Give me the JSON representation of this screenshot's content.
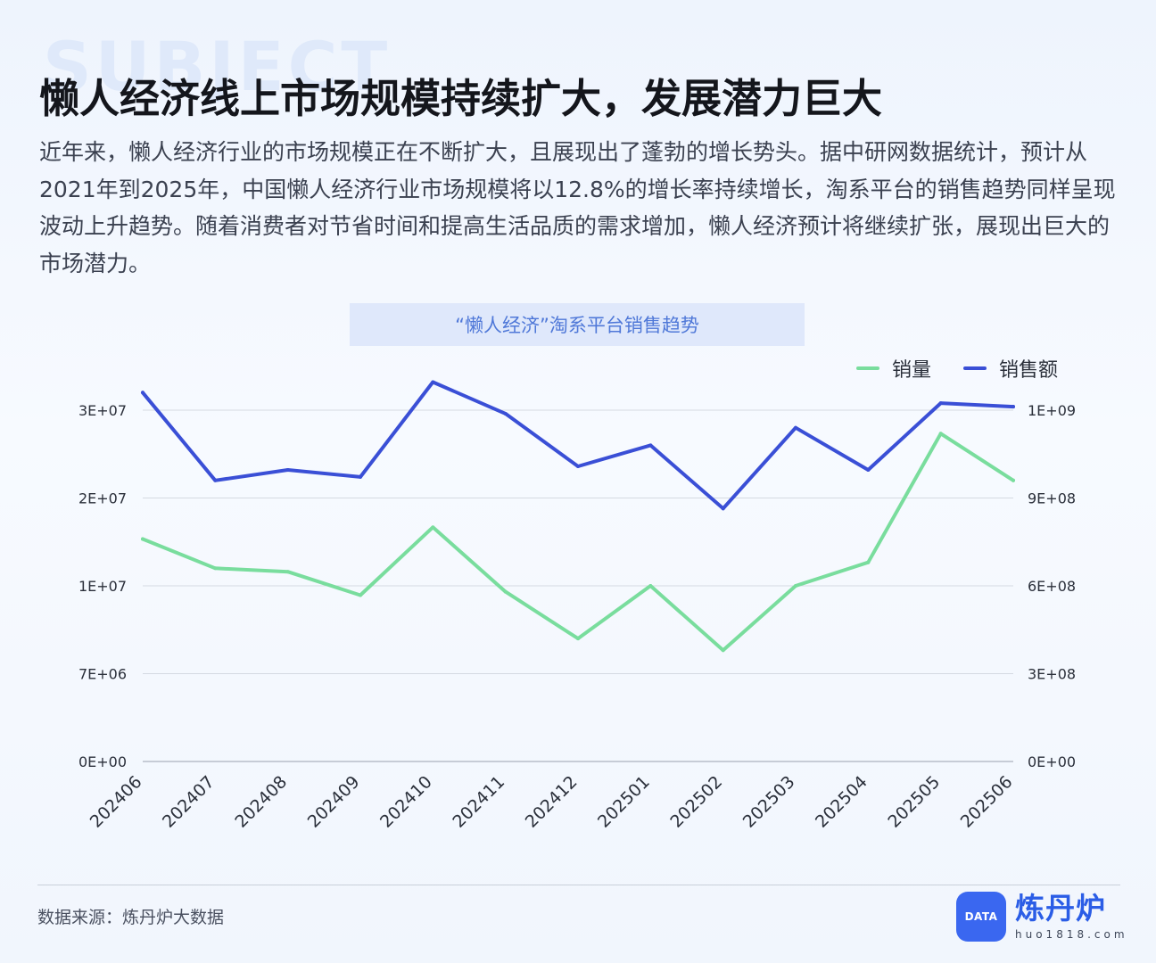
{
  "header": {
    "background_word": "SUBJECT",
    "title": "懒人经济线上市场规模持续扩大，发展潜力巨大",
    "intro": "近年来，懒人经济行业的市场规模正在不断扩大，且展现出了蓬勃的增长势头。据中研网数据统计，预计从2021年到2025年，中国懒人经济行业市场规模将以12.8%的增长率持续增长，淘系平台的销售趋势同样呈现波动上升趋势。随着消费者对节省时间和提高生活品质的需求增加，懒人经济预计将继续扩张，展现出巨大的市场潜力。"
  },
  "chart_data": {
    "type": "line",
    "title": "“懒人经济”淘系平台销售趋势",
    "categories": [
      "202406",
      "202407",
      "202408",
      "202409",
      "202410",
      "202411",
      "202412",
      "202501",
      "202502",
      "202503",
      "202504",
      "202505",
      "202506"
    ],
    "series": [
      {
        "name": "销量",
        "axis": "left",
        "color": "#79dd9d",
        "values": [
          19000000,
          16500000,
          16200000,
          14200000,
          20000000,
          14500000,
          10500000,
          15000000,
          9500000,
          15000000,
          17000000,
          28000000,
          24000000
        ]
      },
      {
        "name": "销售额",
        "axis": "right",
        "color": "#3a4fd6",
        "values": [
          1050000000,
          800000000,
          830000000,
          810000000,
          1080000000,
          990000000,
          840000000,
          900000000,
          720000000,
          950000000,
          830000000,
          1020000000,
          1010000000
        ]
      }
    ],
    "y_left": {
      "ticks": [
        "0E+00",
        "7E+06",
        "1E+07",
        "2E+07",
        "3E+07"
      ]
    },
    "y_right": {
      "ticks": [
        "0E+00",
        "3E+08",
        "6E+08",
        "9E+08",
        "1E+09"
      ]
    },
    "grid": true,
    "legend_position": "top-right"
  },
  "footer": {
    "source": "数据来源：炼丹炉大数据",
    "logo_name": "炼丹炉",
    "logo_url": "huo1818.com",
    "logo_mark_text": "DATA"
  }
}
